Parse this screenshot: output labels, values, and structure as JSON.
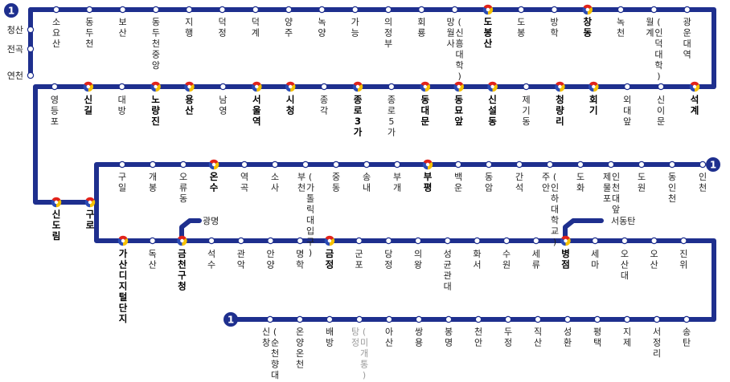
{
  "line_number": "1",
  "start_stations": [
    "청산",
    "전곡",
    "연천"
  ],
  "row1": [
    {
      "name": "소요산"
    },
    {
      "name": "동두천"
    },
    {
      "name": "보산"
    },
    {
      "name": "동두천중앙"
    },
    {
      "name": "지행"
    },
    {
      "name": "덕정"
    },
    {
      "name": "덕계"
    },
    {
      "name": "양주"
    },
    {
      "name": "녹양"
    },
    {
      "name": "가능"
    },
    {
      "name": "의정부"
    },
    {
      "name": "회룡"
    },
    {
      "name": "망월사",
      "sub": "(신흥대학)"
    },
    {
      "name": "도봉산",
      "transfer": true
    },
    {
      "name": "도봉"
    },
    {
      "name": "방학"
    },
    {
      "name": "창동",
      "transfer": true
    },
    {
      "name": "녹천"
    },
    {
      "name": "월계",
      "sub": "(인덕대학)"
    },
    {
      "name": "광운대역"
    }
  ],
  "row2": [
    {
      "name": "석계",
      "transfer": true
    },
    {
      "name": "신이문"
    },
    {
      "name": "외대앞"
    },
    {
      "name": "회기",
      "transfer": true
    },
    {
      "name": "청량리",
      "transfer": true
    },
    {
      "name": "제기동"
    },
    {
      "name": "신설동",
      "transfer": true
    },
    {
      "name": "동묘앞",
      "transfer": true
    },
    {
      "name": "동대문",
      "transfer": true
    },
    {
      "name": "종로5가"
    },
    {
      "name": "종로3가",
      "transfer": true
    },
    {
      "name": "종각"
    },
    {
      "name": "시청",
      "transfer": true
    },
    {
      "name": "서울역",
      "transfer": true
    },
    {
      "name": "남영"
    },
    {
      "name": "용산",
      "transfer": true
    },
    {
      "name": "노량진",
      "transfer": true
    },
    {
      "name": "대방"
    },
    {
      "name": "신길",
      "transfer": true
    },
    {
      "name": "영등포"
    }
  ],
  "junction": [
    {
      "name": "신도림",
      "transfer": true
    },
    {
      "name": "구로",
      "transfer": true
    }
  ],
  "row3": [
    {
      "name": "구일"
    },
    {
      "name": "개봉"
    },
    {
      "name": "오류동"
    },
    {
      "name": "온수",
      "transfer": true
    },
    {
      "name": "역곡"
    },
    {
      "name": "소사"
    },
    {
      "name": "부천",
      "sub": "(가톨릭대입구)"
    },
    {
      "name": "중동"
    },
    {
      "name": "송내"
    },
    {
      "name": "부개"
    },
    {
      "name": "부평",
      "transfer": true
    },
    {
      "name": "백운"
    },
    {
      "name": "동암"
    },
    {
      "name": "간석"
    },
    {
      "name": "주안",
      "sub": "(인하대학교)"
    },
    {
      "name": "도화"
    },
    {
      "name": "제물포",
      "sub": "인천대앞"
    },
    {
      "name": "도원"
    },
    {
      "name": "동인천"
    },
    {
      "name": "인천"
    }
  ],
  "row4": [
    {
      "name": "가산디지털단지",
      "transfer": true
    },
    {
      "name": "독산"
    },
    {
      "name": "금천구청",
      "transfer": true
    },
    {
      "name": "석수"
    },
    {
      "name": "관악"
    },
    {
      "name": "안양"
    },
    {
      "name": "명학"
    },
    {
      "name": "금정",
      "transfer": true
    },
    {
      "name": "군포"
    },
    {
      "name": "당정"
    },
    {
      "name": "의왕"
    },
    {
      "name": "성균관대"
    },
    {
      "name": "화서"
    },
    {
      "name": "수원"
    },
    {
      "name": "세류"
    },
    {
      "name": "병점",
      "transfer": true
    },
    {
      "name": "세마"
    },
    {
      "name": "오산대"
    },
    {
      "name": "오산"
    },
    {
      "name": "진위"
    }
  ],
  "row5": [
    {
      "name": "신창",
      "sub": "(순천향대)"
    },
    {
      "name": "온양온천"
    },
    {
      "name": "배방"
    },
    {
      "name": "탕정",
      "sub": "(미개통)",
      "muted": true
    },
    {
      "name": "아산"
    },
    {
      "name": "쌍용"
    },
    {
      "name": "봉명"
    },
    {
      "name": "천안"
    },
    {
      "name": "두정"
    },
    {
      "name": "직산"
    },
    {
      "name": "성환"
    },
    {
      "name": "평택"
    },
    {
      "name": "지제"
    },
    {
      "name": "서정리"
    },
    {
      "name": "송탄"
    }
  ],
  "branch_gwangmyeong": "광명",
  "branch_seodongtan": "서동탄",
  "colors": {
    "line": "#1e2f8e",
    "taeguk_red": "#e2231a",
    "taeguk_blue": "#2a4bb5",
    "taeguk_yellow": "#f6c100",
    "muted_text": "#9a9a9a"
  }
}
